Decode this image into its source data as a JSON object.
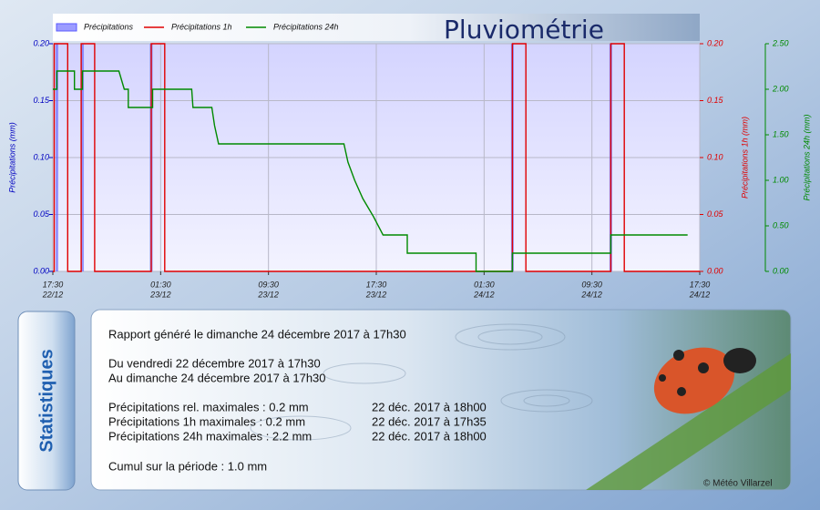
{
  "chart_data": {
    "type": "line",
    "title": "Pluviométrie",
    "series": [
      {
        "name": "Précipitations",
        "type": "bar",
        "color": "#5a5aff",
        "axis": "y",
        "x": [
          0.3,
          2.2,
          7.3,
          34.1,
          41.4
        ],
        "values": [
          0.2,
          0.2,
          0.2,
          0.2,
          0.2
        ]
      },
      {
        "name": "Précipitations 1h",
        "color": "#e00000",
        "axis": "y2",
        "x": [
          0,
          0.1,
          0.1,
          1.1,
          1.1,
          2.1,
          2.1,
          3.1,
          3.1,
          7.3,
          7.3,
          8.3,
          8.3,
          34.1,
          34.1,
          35.1,
          35.1,
          41.4,
          41.4,
          42.4,
          42.4,
          48
        ],
        "values": [
          0,
          0,
          0.2,
          0.2,
          0,
          0,
          0.2,
          0.2,
          0,
          0,
          0.2,
          0.2,
          0,
          0,
          0.2,
          0.2,
          0,
          0,
          0.2,
          0.2,
          0,
          0
        ]
      },
      {
        "name": "Précipitations 24h",
        "color": "#008a00",
        "axis": "y3",
        "x": [
          0,
          0.3,
          0.3,
          1.6,
          1.6,
          2.2,
          2.2,
          4.9,
          5.3,
          5.6,
          5.6,
          7.4,
          7.4,
          10.3,
          10.4,
          11.8,
          12.0,
          12.3,
          21.6,
          21.9,
          22.4,
          23.0,
          23.8,
          24.5,
          26.3,
          26.3,
          31.4,
          31.4,
          34.1,
          34.1,
          41.4,
          41.4,
          47.1
        ],
        "values": [
          2.0,
          2.0,
          2.2,
          2.2,
          2.0,
          2.0,
          2.2,
          2.2,
          2.0,
          2.0,
          1.8,
          1.8,
          2.0,
          2.0,
          1.8,
          1.8,
          1.6,
          1.4,
          1.4,
          1.2,
          1.0,
          0.8,
          0.6,
          0.4,
          0.4,
          0.2,
          0.2,
          0,
          0,
          0.2,
          0.2,
          0.4,
          0.4
        ]
      }
    ],
    "xlim": [
      0,
      48
    ],
    "xticks": [
      {
        "value": 0,
        "label": [
          "17:30",
          "22/12"
        ]
      },
      {
        "value": 8,
        "label": [
          "01:30",
          "23/12"
        ]
      },
      {
        "value": 16,
        "label": [
          "09:30",
          "23/12"
        ]
      },
      {
        "value": 24,
        "label": [
          "17:30",
          "23/12"
        ]
      },
      {
        "value": 32,
        "label": [
          "01:30",
          "24/12"
        ]
      },
      {
        "value": 40,
        "label": [
          "09:30",
          "24/12"
        ]
      },
      {
        "value": 48,
        "label": [
          "17:30",
          "24/12"
        ]
      }
    ],
    "ylabel": "Précipitations (mm)",
    "ylim": [
      0,
      0.2
    ],
    "yticks": [
      {
        "value": 0,
        "label": "0.00"
      },
      {
        "value": 0.05,
        "label": "0.05"
      },
      {
        "value": 0.1,
        "label": "0.10"
      },
      {
        "value": 0.15,
        "label": "0.15"
      },
      {
        "value": 0.2,
        "label": "0.20"
      }
    ],
    "y2label": "Précipitations 1h (mm)",
    "y2lim": [
      0,
      0.2
    ],
    "y2ticks": [
      {
        "value": 0,
        "label": "0.00"
      },
      {
        "value": 0.05,
        "label": "0.05"
      },
      {
        "value": 0.1,
        "label": "0.10"
      },
      {
        "value": 0.15,
        "label": "0.15"
      },
      {
        "value": 0.2,
        "label": "0.20"
      }
    ],
    "y3label": "Précipitations 24h (mm)",
    "y3lim": [
      0,
      2.5
    ],
    "y3ticks": [
      {
        "value": 0,
        "label": "0.00"
      },
      {
        "value": 0.5,
        "label": "0.50"
      },
      {
        "value": 1,
        "label": "1.00"
      },
      {
        "value": 1.5,
        "label": "1.50"
      },
      {
        "value": 2,
        "label": "2.00"
      },
      {
        "value": 2.5,
        "label": "2.50"
      }
    ],
    "grid": true
  },
  "statistics": {
    "title": "Statistiques",
    "generated": "Rapport généré le dimanche 24 décembre 2017 à 17h30",
    "period_from": "Du vendredi 22 décembre 2017 à 17h30",
    "period_to": "Au dimanche 24 décembre 2017 à 17h30",
    "maxima": [
      {
        "label": "Précipitations rel. maximales : 0.2 mm",
        "date": "22 déc. 2017 à 18h00"
      },
      {
        "label": "Précipitations 1h maximales : 0.2 mm",
        "date": "22 déc. 2017 à 17h35"
      },
      {
        "label": "Précipitations 24h maximales : 2.2 mm",
        "date": "22 déc. 2017 à 18h00"
      }
    ],
    "total": "Cumul sur la période : 1.0 mm",
    "copyright": "© Météo Villarzel"
  }
}
